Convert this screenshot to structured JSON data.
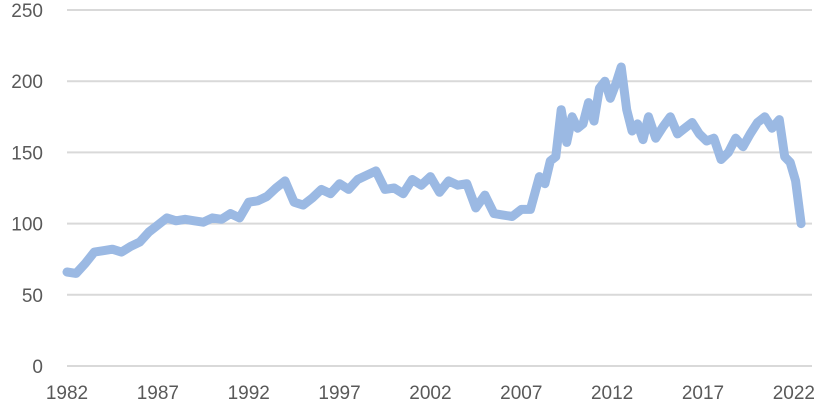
{
  "chart_data": {
    "type": "line",
    "title": "",
    "xlabel": "",
    "ylabel": "",
    "xlim": [
      1982,
      2023
    ],
    "ylim": [
      0,
      250
    ],
    "grid": true,
    "y_ticks": [
      0,
      50,
      100,
      150,
      200,
      250
    ],
    "x_ticks": [
      1982,
      1987,
      1992,
      1997,
      2002,
      2007,
      2012,
      2017,
      2022
    ],
    "x_tick_labels": [
      "1982",
      "1987",
      "1992",
      "1997",
      "2002",
      "2007",
      "2012",
      "2017",
      "2022"
    ],
    "series": [
      {
        "color": "#9bb9e3",
        "x": [
          1982.0,
          1982.5,
          1983.0,
          1983.5,
          1984.0,
          1984.5,
          1985.0,
          1985.5,
          1986.0,
          1986.5,
          1987.0,
          1987.5,
          1988.0,
          1988.5,
          1989.0,
          1989.5,
          1990.0,
          1990.5,
          1991.0,
          1991.5,
          1992.0,
          1992.5,
          1993.0,
          1993.5,
          1994.0,
          1994.5,
          1995.0,
          1995.5,
          1996.0,
          1996.5,
          1997.0,
          1997.5,
          1998.0,
          1998.5,
          1999.0,
          1999.5,
          2000.0,
          2000.5,
          2001.0,
          2001.5,
          2002.0,
          2002.5,
          2003.0,
          2003.5,
          2004.0,
          2004.5,
          2005.0,
          2005.5,
          2006.0,
          2006.5,
          2007.0,
          2007.5,
          2008.0,
          2008.3,
          2008.6,
          2008.9,
          2009.2,
          2009.5,
          2009.8,
          2010.1,
          2010.4,
          2010.7,
          2011.0,
          2011.3,
          2011.6,
          2011.9,
          2012.2,
          2012.5,
          2012.8,
          2013.1,
          2013.4,
          2013.7,
          2014.0,
          2014.4,
          2014.8,
          2015.2,
          2015.6,
          2016.0,
          2016.4,
          2016.8,
          2017.2,
          2017.6,
          2018.0,
          2018.4,
          2018.8,
          2019.2,
          2019.6,
          2020.0,
          2020.4,
          2020.8,
          2021.2,
          2021.5,
          2021.8,
          2022.1,
          2022.4
        ],
        "values": [
          66,
          65,
          72,
          80,
          81,
          82,
          80,
          84,
          87,
          94,
          99,
          104,
          102,
          103,
          102,
          101,
          104,
          103,
          107,
          104,
          115,
          116,
          119,
          125,
          130,
          115,
          113,
          118,
          124,
          121,
          128,
          124,
          131,
          134,
          137,
          124,
          125,
          121,
          131,
          127,
          133,
          122,
          130,
          127,
          128,
          111,
          120,
          107,
          106,
          105,
          110,
          110,
          133,
          128,
          144,
          147,
          180,
          157,
          175,
          167,
          170,
          185,
          172,
          195,
          200,
          188,
          198,
          210,
          180,
          165,
          170,
          159,
          175,
          160,
          168,
          175,
          163,
          167,
          171,
          163,
          158,
          160,
          145,
          150,
          160,
          154,
          163,
          171,
          175,
          167,
          173,
          147,
          143,
          130,
          100
        ]
      }
    ]
  }
}
